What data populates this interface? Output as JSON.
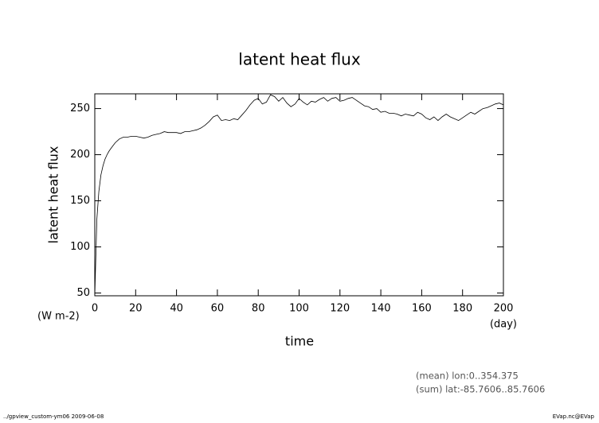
{
  "chart_data": {
    "type": "line",
    "title": "latent heat flux",
    "y_label": "latent heat flux",
    "x_label": "time",
    "y_unit": "(W m-2)",
    "x_unit": "(day)",
    "annotations": [
      "(mean) lon:0..354.375",
      "(sum) lat:-85.7606..85.7606"
    ],
    "footer_left": "../gpview_custom-ym06  2009-06-08",
    "footer_right": "EVap.nc@EVap",
    "xlim": [
      0,
      200
    ],
    "xticks": [
      0,
      20,
      40,
      60,
      80,
      100,
      120,
      140,
      160,
      180,
      200
    ],
    "ylim": [
      47,
      266
    ],
    "yticks": [
      50,
      100,
      150,
      200,
      250
    ],
    "x": [
      0,
      1,
      2,
      3,
      4,
      5,
      6,
      7,
      8,
      9,
      10,
      12,
      14,
      16,
      18,
      20,
      22,
      24,
      26,
      28,
      30,
      32,
      34,
      36,
      38,
      40,
      42,
      44,
      46,
      48,
      50,
      52,
      54,
      56,
      58,
      60,
      62,
      64,
      66,
      68,
      70,
      72,
      74,
      76,
      78,
      80,
      82,
      84,
      86,
      88,
      90,
      92,
      94,
      96,
      98,
      100,
      102,
      104,
      106,
      108,
      110,
      112,
      114,
      116,
      118,
      120,
      122,
      124,
      126,
      128,
      130,
      132,
      134,
      136,
      138,
      140,
      142,
      144,
      146,
      148,
      150,
      152,
      154,
      156,
      158,
      160,
      162,
      164,
      166,
      168,
      170,
      172,
      174,
      176,
      178,
      180,
      182,
      184,
      186,
      188,
      190,
      192,
      194,
      196,
      198,
      200
    ],
    "series": [
      {
        "name": "latent heat flux",
        "color": "#000000",
        "values": [
          47,
          130,
          160,
          178,
          188,
          195,
          200,
          204,
          207,
          210,
          213,
          217,
          219,
          219,
          220,
          220,
          219,
          218,
          219,
          221,
          222,
          223,
          225,
          224,
          224,
          224,
          223,
          225,
          225,
          226,
          227,
          229,
          232,
          236,
          241,
          243,
          237,
          238,
          237,
          239,
          238,
          243,
          248,
          254,
          259,
          261,
          255,
          257,
          265,
          263,
          258,
          262,
          256,
          252,
          255,
          261,
          257,
          254,
          258,
          257,
          260,
          262,
          258,
          261,
          262,
          258,
          259,
          261,
          262,
          259,
          256,
          253,
          252,
          249,
          250,
          246,
          247,
          245,
          245,
          244,
          242,
          244,
          243,
          242,
          246,
          244,
          240,
          238,
          241,
          237,
          241,
          244,
          241,
          239,
          237,
          240,
          243,
          246,
          244,
          247,
          250,
          251,
          253,
          255,
          256,
          254
        ]
      }
    ]
  }
}
